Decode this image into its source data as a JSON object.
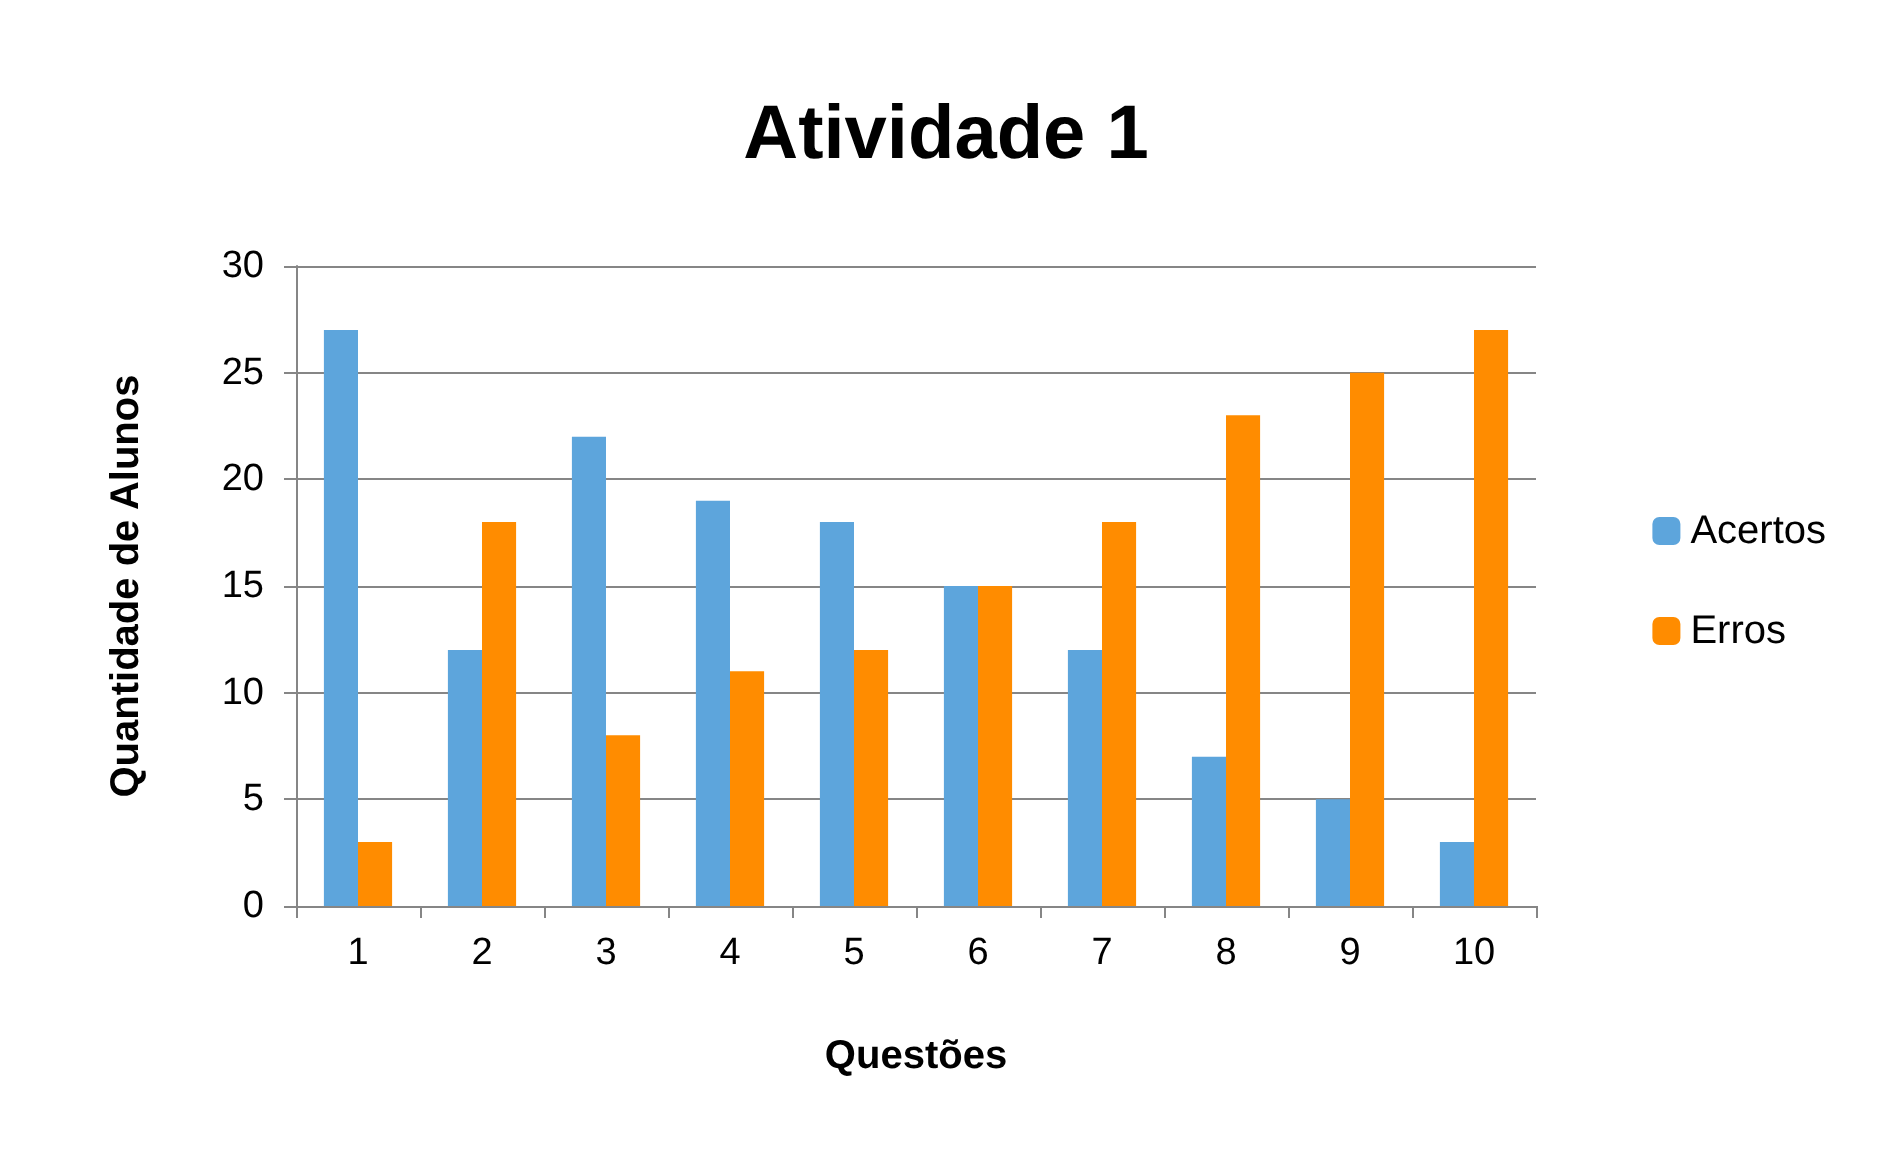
{
  "chart_data": {
    "type": "bar",
    "title": "Atividade 1",
    "xlabel": "Questões",
    "ylabel": "Quantidade de Alunos",
    "categories": [
      "1",
      "2",
      "3",
      "4",
      "5",
      "6",
      "7",
      "8",
      "9",
      "10"
    ],
    "series": [
      {
        "name": "Acertos",
        "color": "#5da5dc",
        "values": [
          27,
          12,
          22,
          19,
          18,
          15,
          12,
          7,
          5,
          3
        ]
      },
      {
        "name": "Erros",
        "color": "#ff8c00",
        "values": [
          3,
          18,
          8,
          11,
          12,
          15,
          18,
          23,
          25,
          27
        ]
      }
    ],
    "ylim": [
      0,
      30
    ],
    "yticks": [
      0,
      5,
      10,
      15,
      20,
      25,
      30
    ],
    "grid": "y",
    "legend": "right"
  }
}
